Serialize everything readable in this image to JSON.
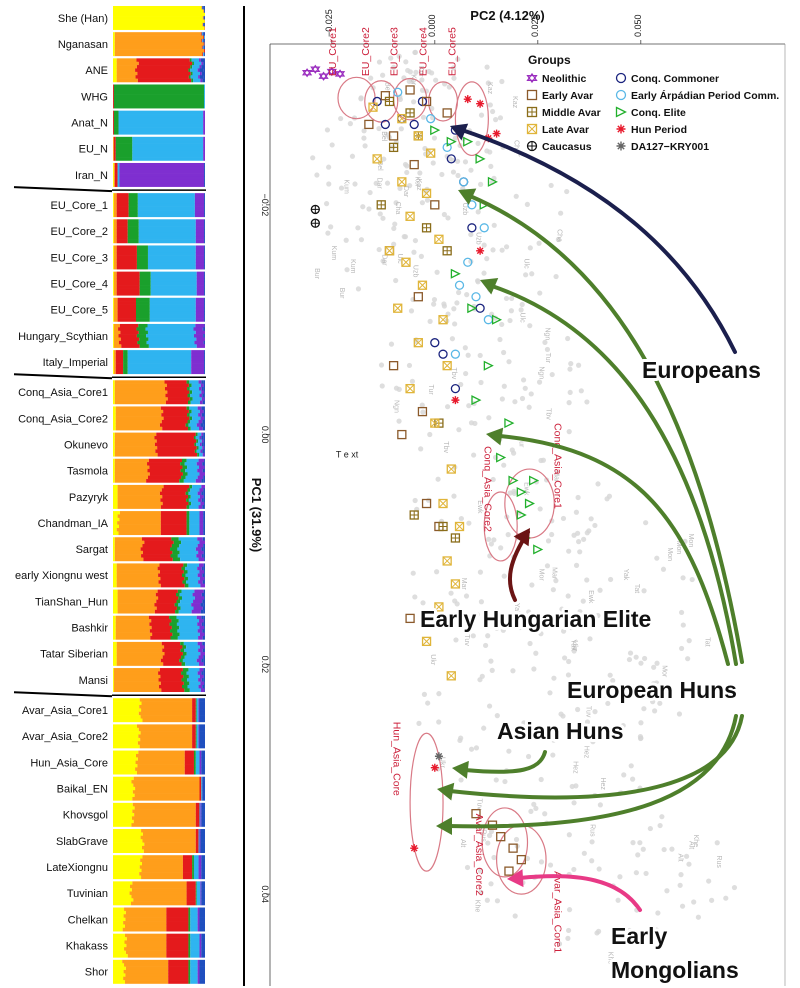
{
  "chart_data": [
    {
      "type": "stacked-bar",
      "orientation": "horizontal",
      "title": "",
      "component_colors": [
        "#ffff00",
        "#ff9e1b",
        "#e41a1c",
        "#1aa02c",
        "#2fb4f0",
        "#7f2fd0",
        "#1f4fbf"
      ],
      "populations": [
        {
          "label": "She (Han)",
          "group": 0,
          "props": [
            0.98,
            0.01,
            0,
            0,
            0,
            0,
            0.01
          ]
        },
        {
          "label": "Nganasan",
          "group": 0,
          "props": [
            0.02,
            0.95,
            0.01,
            0,
            0.01,
            0,
            0.01
          ]
        },
        {
          "label": "ANE",
          "group": 0,
          "props": [
            0.04,
            0.22,
            0.58,
            0.02,
            0.08,
            0.02,
            0.04
          ]
        },
        {
          "label": "WHG",
          "group": 0,
          "props": [
            0,
            0,
            0.01,
            0.98,
            0.01,
            0,
            0
          ]
        },
        {
          "label": "Anat_N",
          "group": 0,
          "props": [
            0,
            0,
            0.01,
            0.05,
            0.92,
            0.02,
            0
          ]
        },
        {
          "label": "EU_N",
          "group": 0,
          "props": [
            0,
            0.01,
            0.02,
            0.18,
            0.77,
            0.02,
            0
          ]
        },
        {
          "label": "Iran_N",
          "group": 0,
          "props": [
            0.01,
            0.01,
            0.03,
            0,
            0.02,
            0.92,
            0.01
          ]
        },
        {
          "label": "EU_Core_1",
          "group": 1,
          "props": [
            0.01,
            0.03,
            0.13,
            0.1,
            0.62,
            0.1,
            0.01
          ]
        },
        {
          "label": "EU_Core_2",
          "group": 1,
          "props": [
            0.01,
            0.03,
            0.12,
            0.12,
            0.62,
            0.09,
            0.01
          ]
        },
        {
          "label": "EU_Core_3",
          "group": 1,
          "props": [
            0.01,
            0.03,
            0.22,
            0.12,
            0.52,
            0.09,
            0.01
          ]
        },
        {
          "label": "EU_Core_4",
          "group": 1,
          "props": [
            0.01,
            0.03,
            0.25,
            0.12,
            0.5,
            0.08,
            0.01
          ]
        },
        {
          "label": "EU_Core_5",
          "group": 1,
          "props": [
            0.01,
            0.04,
            0.2,
            0.15,
            0.5,
            0.09,
            0.01
          ]
        },
        {
          "label": "Hungary_Scythian",
          "group": 1,
          "props": [
            0.01,
            0.06,
            0.2,
            0.1,
            0.52,
            0.1,
            0.01
          ]
        },
        {
          "label": "Italy_Imperial",
          "group": 1,
          "props": [
            0.01,
            0.02,
            0.08,
            0.05,
            0.69,
            0.14,
            0.01
          ]
        },
        {
          "label": "Conq_Asia_Core1",
          "group": 2,
          "props": [
            0.02,
            0.56,
            0.24,
            0.03,
            0.1,
            0.03,
            0.02
          ]
        },
        {
          "label": "Conq_Asia_Core2",
          "group": 2,
          "props": [
            0.03,
            0.5,
            0.28,
            0.03,
            0.09,
            0.04,
            0.03
          ]
        },
        {
          "label": "Okunevo",
          "group": 2,
          "props": [
            0.02,
            0.45,
            0.43,
            0.02,
            0.04,
            0.02,
            0.02
          ]
        },
        {
          "label": "Tasmola",
          "group": 2,
          "props": [
            0.02,
            0.36,
            0.36,
            0.05,
            0.13,
            0.06,
            0.02
          ]
        },
        {
          "label": "Pazyryk",
          "group": 2,
          "props": [
            0.05,
            0.48,
            0.28,
            0.03,
            0.1,
            0.04,
            0.02
          ]
        },
        {
          "label": "Chandman_IA",
          "group": 2,
          "props": [
            0.06,
            0.46,
            0.28,
            0.03,
            0.11,
            0.04,
            0.02
          ]
        },
        {
          "label": "Sargat",
          "group": 2,
          "props": [
            0.02,
            0.3,
            0.32,
            0.08,
            0.2,
            0.06,
            0.02
          ]
        },
        {
          "label": "early Xiongnu west",
          "group": 2,
          "props": [
            0.04,
            0.46,
            0.26,
            0.04,
            0.13,
            0.05,
            0.02
          ]
        },
        {
          "label": "TianShan_Hun",
          "group": 2,
          "props": [
            0.05,
            0.42,
            0.22,
            0.04,
            0.14,
            0.1,
            0.03
          ]
        },
        {
          "label": "Bashkir",
          "group": 2,
          "props": [
            0.03,
            0.38,
            0.22,
            0.08,
            0.22,
            0.05,
            0.02
          ]
        },
        {
          "label": "Tatar Siberian",
          "group": 2,
          "props": [
            0.04,
            0.5,
            0.2,
            0.04,
            0.15,
            0.05,
            0.02
          ]
        },
        {
          "label": "Mansi",
          "group": 2,
          "props": [
            0.01,
            0.5,
            0.25,
            0.06,
            0.12,
            0.04,
            0.02
          ]
        },
        {
          "label": "Avar_Asia_Core1",
          "group": 3,
          "props": [
            0.3,
            0.56,
            0.04,
            0.01,
            0.02,
            0.01,
            0.06
          ]
        },
        {
          "label": "Avar_Asia_Core2",
          "group": 3,
          "props": [
            0.28,
            0.58,
            0.04,
            0.01,
            0.02,
            0.01,
            0.06
          ]
        },
        {
          "label": "Hun_Asia_Core",
          "group": 3,
          "props": [
            0.26,
            0.52,
            0.1,
            0.02,
            0.04,
            0.02,
            0.04
          ]
        },
        {
          "label": "Baikal_EN",
          "group": 3,
          "props": [
            0.22,
            0.72,
            0.02,
            0,
            0.01,
            0,
            0.03
          ]
        },
        {
          "label": "Khovsgol",
          "group": 3,
          "props": [
            0.22,
            0.68,
            0.04,
            0,
            0.01,
            0.01,
            0.04
          ]
        },
        {
          "label": "SlabGrave",
          "group": 3,
          "props": [
            0.32,
            0.58,
            0.03,
            0,
            0.01,
            0.01,
            0.05
          ]
        },
        {
          "label": "LateXiongnu",
          "group": 3,
          "props": [
            0.3,
            0.46,
            0.1,
            0.02,
            0.05,
            0.03,
            0.04
          ]
        },
        {
          "label": "Tuvinian",
          "group": 3,
          "props": [
            0.2,
            0.6,
            0.1,
            0.01,
            0.04,
            0.01,
            0.04
          ]
        },
        {
          "label": "Chelkan",
          "group": 3,
          "props": [
            0.12,
            0.46,
            0.24,
            0.02,
            0.08,
            0.02,
            0.06
          ]
        },
        {
          "label": "Khakass",
          "group": 3,
          "props": [
            0.14,
            0.44,
            0.24,
            0.02,
            0.1,
            0.02,
            0.04
          ]
        },
        {
          "label": "Shor",
          "group": 3,
          "props": [
            0.12,
            0.48,
            0.22,
            0.02,
            0.08,
            0.02,
            0.06
          ]
        }
      ]
    },
    {
      "type": "scatter",
      "title": "",
      "xlabel": "PC2 (4.12%)",
      "ylabel": "PC1 (31.9%)",
      "xlim": [
        -0.04,
        0.085
      ],
      "ylim": [
        -0.034,
        0.048
      ],
      "xticks": [
        -0.025,
        0.0,
        0.025,
        0.05
      ],
      "xtick_labels": [
        "−0.025",
        "0.000",
        "0.025",
        "0.050"
      ],
      "yticks": [
        -0.02,
        0.0,
        0.02,
        0.04
      ],
      "ytick_labels": [
        "−0.02",
        "0.00",
        "0.02",
        "0.04"
      ],
      "legend_title": "Groups",
      "legend": [
        {
          "label": "Neolithic",
          "marker": "star6",
          "color": "#9b2fbf"
        },
        {
          "label": "Conq. Commoner",
          "marker": "circle",
          "color": "#1a237e"
        },
        {
          "label": "Early Avar",
          "marker": "square",
          "color": "#8b5a2b"
        },
        {
          "label": "Early Árpádian Period Comm.",
          "marker": "circle",
          "color": "#5ab8e6"
        },
        {
          "label": "Middle Avar",
          "marker": "square-plus",
          "color": "#8a6d1a"
        },
        {
          "label": "Conq. Elite",
          "marker": "triangle",
          "color": "#22b02c"
        },
        {
          "label": "Late Avar",
          "marker": "square-x",
          "color": "#e0b53a"
        },
        {
          "label": "Hun Period",
          "marker": "asterisk",
          "color": "#e8192c"
        },
        {
          "label": "Caucasus",
          "marker": "circle-plus",
          "color": "#111111"
        },
        {
          "label": "DA127−KRY001",
          "marker": "asterisk",
          "color": "#666666"
        }
      ],
      "series": [
        {
          "name": "Neolithic",
          "x": [
            -0.031,
            -0.029,
            -0.027,
            -0.025,
            -0.023
          ],
          "y": [
            -0.0315,
            -0.0318,
            -0.0312,
            -0.0316,
            -0.0314
          ]
        },
        {
          "name": "Conq. Commoner",
          "x": [
            -0.014,
            -0.012,
            -0.008,
            -0.003,
            -0.005,
            0.005,
            0.004,
            0.007,
            0.009,
            0.011,
            0.0,
            0.002,
            0.005
          ],
          "y": [
            -0.029,
            -0.027,
            -0.0275,
            -0.029,
            -0.027,
            -0.0265,
            -0.024,
            -0.022,
            -0.018,
            -0.011,
            -0.008,
            -0.007,
            -0.004
          ]
        },
        {
          "name": "Early Avar",
          "x": [
            -0.012,
            -0.006,
            -0.002,
            0.003,
            -0.016,
            -0.01,
            -0.005,
            0.0,
            -0.011,
            -0.004,
            -0.01,
            -0.003,
            -0.008,
            -0.002,
            0.001,
            -0.006,
            0.01,
            0.014,
            0.016,
            0.019,
            0.018,
            0.021
          ],
          "y": [
            -0.0295,
            -0.03,
            -0.029,
            -0.028,
            -0.027,
            -0.026,
            -0.0235,
            -0.02,
            -0.016,
            -0.012,
            -0.006,
            -0.002,
            0.0,
            0.006,
            0.008,
            0.016,
            0.033,
            0.034,
            0.035,
            0.036,
            0.038,
            0.037
          ]
        },
        {
          "name": "Early Árpádian Period Comm.",
          "x": [
            -0.009,
            -0.001,
            0.003,
            0.007,
            0.009,
            0.012,
            0.008,
            0.006,
            0.01,
            0.013,
            0.005
          ],
          "y": [
            -0.0298,
            -0.0275,
            -0.025,
            -0.022,
            -0.02,
            -0.018,
            -0.015,
            -0.013,
            -0.012,
            -0.01,
            -0.007
          ]
        },
        {
          "name": "Middle Avar",
          "x": [
            -0.011,
            -0.006,
            -0.004,
            -0.01,
            -0.013,
            -0.002,
            0.003,
            0.001,
            -0.005,
            0.002,
            0.005
          ],
          "y": [
            -0.029,
            -0.028,
            -0.026,
            -0.025,
            -0.02,
            -0.018,
            -0.016,
            -0.001,
            0.007,
            0.008,
            0.009
          ]
        },
        {
          "name": "Late Avar",
          "x": [
            -0.015,
            -0.008,
            -0.004,
            -0.001,
            -0.014,
            -0.008,
            -0.002,
            -0.006,
            0.001,
            -0.011,
            -0.007,
            -0.003,
            -0.009,
            0.002,
            -0.004,
            0.003,
            -0.006,
            0.0,
            0.004,
            0.002,
            0.006,
            0.003,
            0.005,
            0.001,
            -0.002,
            0.004
          ],
          "y": [
            -0.0285,
            -0.0275,
            -0.026,
            -0.0245,
            -0.024,
            -0.022,
            -0.021,
            -0.019,
            -0.017,
            -0.016,
            -0.015,
            -0.013,
            -0.011,
            -0.01,
            -0.008,
            -0.006,
            -0.004,
            -0.001,
            0.003,
            0.006,
            0.008,
            0.011,
            0.013,
            0.015,
            0.018,
            0.021
          ]
        },
        {
          "name": "Conq. Elite",
          "x": [
            0.0,
            0.004,
            0.008,
            0.011,
            0.014,
            0.012,
            0.005,
            0.009,
            0.015,
            0.013,
            0.01,
            0.018,
            0.016,
            0.019,
            0.021,
            0.023,
            0.024,
            0.021,
            0.022,
            0.025
          ],
          "y": [
            -0.0265,
            -0.0255,
            -0.0255,
            -0.024,
            -0.022,
            -0.02,
            -0.014,
            -0.011,
            -0.01,
            -0.006,
            -0.003,
            -0.001,
            0.002,
            0.004,
            0.005,
            0.006,
            0.004,
            0.007,
            0.009,
            0.01
          ]
        },
        {
          "name": "Hun Period",
          "x": [
            0.008,
            0.011,
            0.013,
            0.015,
            0.011,
            0.005,
            0.0,
            -0.005
          ],
          "y": [
            -0.0292,
            -0.0288,
            -0.0258,
            -0.0262,
            -0.016,
            -0.003,
            0.029,
            0.036
          ]
        },
        {
          "name": "Caucasus",
          "x": [
            -0.029,
            -0.029
          ],
          "y": [
            -0.0196,
            -0.0184
          ]
        },
        {
          "name": "DA127−KRY001",
          "x": [
            0.001
          ],
          "y": [
            0.028
          ]
        }
      ],
      "clusters": [
        "EU_Core1",
        "EU_Core2",
        "EU_Core3",
        "EU_Core4",
        "EU_Core5",
        "Conq_Asia_Core1",
        "Conq_Asia_Core2",
        "Hun_Asia_Core",
        "Avar_Asia_Core1",
        "Avar_Asia_Core2"
      ],
      "background_labels": [
        "Bel",
        "Cha",
        "Tbv",
        "Mar",
        "Ukr",
        "Rus",
        "Kum",
        "Mor",
        "Kaz",
        "Uzb",
        "Tur",
        "Yak",
        "Tuv",
        "Alt",
        "Dar",
        "Mon",
        "Kor",
        "Ulc",
        "Ngn",
        "Ewk",
        "Hez",
        "Khe",
        "Bur",
        "Tat"
      ],
      "plot_text": "T e xt",
      "annotations": [
        "Europeans",
        "Early Hungarian Elite",
        "European Huns",
        "Asian Huns",
        "Early",
        "Mongolians"
      ]
    }
  ]
}
